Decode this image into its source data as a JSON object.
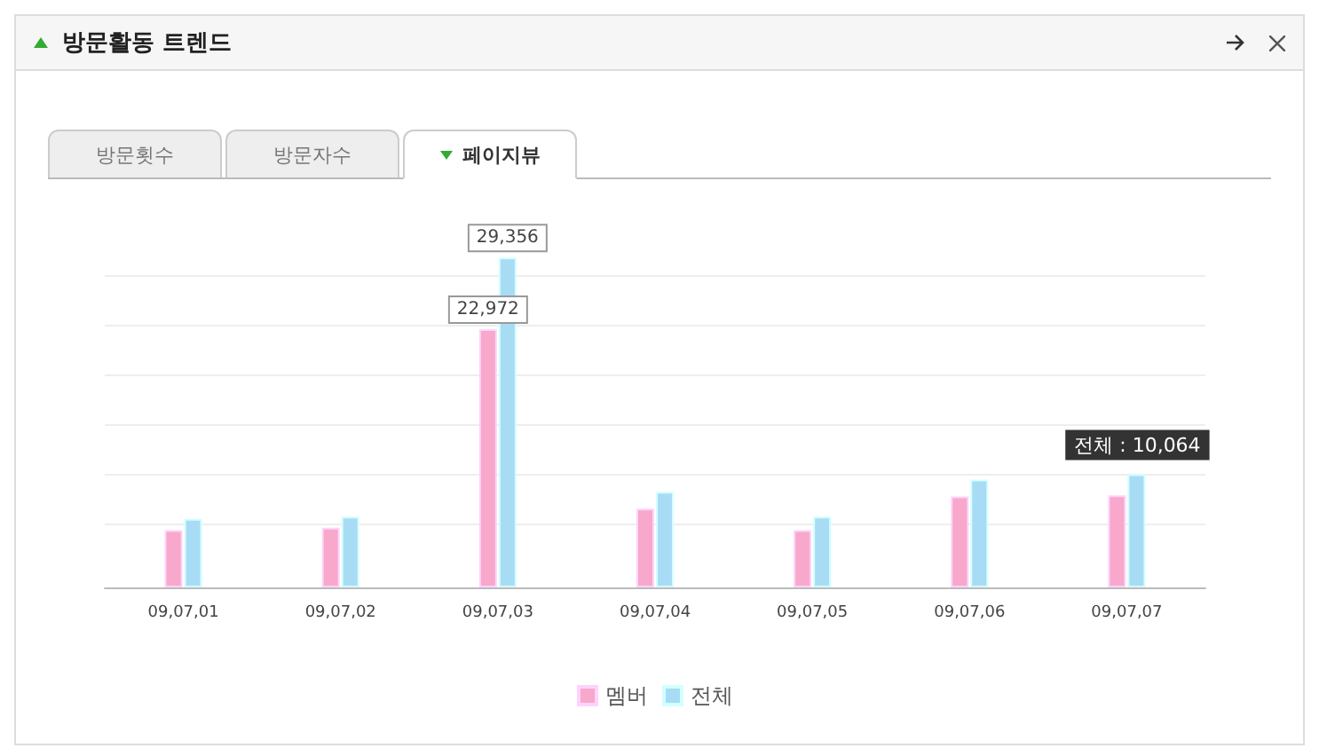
{
  "chart_data": {
    "type": "bar",
    "title": "방문활동 트렌드",
    "categories": [
      "09,07,01",
      "09,07,02",
      "09,07,03",
      "09,07,04",
      "09,07,05",
      "09,07,06",
      "09,07,07"
    ],
    "series": [
      {
        "name": "멤버",
        "color": "#f7a8cb",
        "values": [
          5100,
          5300,
          22972,
          7000,
          5100,
          8100,
          8200
        ],
        "value_labels": [
          null,
          null,
          "22,972",
          null,
          null,
          null,
          null
        ]
      },
      {
        "name": "전체",
        "color": "#a8dcf5",
        "values": [
          6100,
          6300,
          29356,
          8500,
          6300,
          9600,
          10064
        ],
        "value_labels": [
          null,
          null,
          "29,356",
          null,
          null,
          null,
          null
        ]
      }
    ],
    "yticks": [
      {
        "value": 5700,
        "label": null
      },
      {
        "value": 10100,
        "label": null
      },
      {
        "value": 14500,
        "label": null
      },
      {
        "value": 18900,
        "label": null
      },
      {
        "value": 23300,
        "label": null
      },
      {
        "value": 27700,
        "label": null
      }
    ],
    "tick_labels": "x",
    "grid": "y",
    "legend": "bottom",
    "annotations": [
      "방문횟수",
      "방문자수",
      "페이지뷰",
      {
        "text": "전체 : 10,064",
        "x": "09,07,07",
        "y": 10064
      }
    ]
  }
}
